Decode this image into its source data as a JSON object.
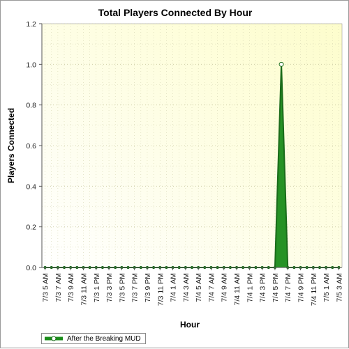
{
  "chart_data": {
    "type": "area",
    "title": "Total Players Connected By Hour",
    "xlabel": "Hour",
    "ylabel": "Players Connected",
    "ylim": [
      0,
      1.2
    ],
    "yticks": [
      "0.0",
      "0.2",
      "0.4",
      "0.6",
      "0.8",
      "1.0",
      "1.2"
    ],
    "categories": [
      "7/3 5 AM",
      "7/3 7 AM",
      "7/3 9 AM",
      "7/3 11 AM",
      "7/3 1 PM",
      "7/3 3 PM",
      "7/3 5 PM",
      "7/3 7 PM",
      "7/3 9 PM",
      "7/3 11 PM",
      "7/4 1 AM",
      "7/4 3 AM",
      "7/4 5 AM",
      "7/4 7 AM",
      "7/4 9 AM",
      "7/4 11 AM",
      "7/4 1 PM",
      "7/4 3 PM",
      "7/4 5 PM",
      "7/4 7 PM",
      "7/4 9 PM",
      "7/4 11 PM",
      "7/5 1 AM",
      "7/5 3 AM"
    ],
    "grid": true,
    "legend_position": "bottom-left",
    "series": [
      {
        "name": "After the Breaking MUD",
        "color": "#1a8c1a",
        "x": [
          "7/3 5 AM",
          "7/3 6 AM",
          "7/3 7 AM",
          "7/3 8 AM",
          "7/3 9 AM",
          "7/3 10 AM",
          "7/3 11 AM",
          "7/3 12 PM",
          "7/3 1 PM",
          "7/3 2 PM",
          "7/3 3 PM",
          "7/3 4 PM",
          "7/3 5 PM",
          "7/3 6 PM",
          "7/3 7 PM",
          "7/3 8 PM",
          "7/3 9 PM",
          "7/3 10 PM",
          "7/3 11 PM",
          "7/4 12 AM",
          "7/4 1 AM",
          "7/4 2 AM",
          "7/4 3 AM",
          "7/4 4 AM",
          "7/4 5 AM",
          "7/4 6 AM",
          "7/4 7 AM",
          "7/4 8 AM",
          "7/4 9 AM",
          "7/4 10 AM",
          "7/4 11 AM",
          "7/4 12 PM",
          "7/4 1 PM",
          "7/4 2 PM",
          "7/4 3 PM",
          "7/4 4 PM",
          "7/4 5 PM",
          "7/4 6 PM",
          "7/4 7 PM",
          "7/4 8 PM",
          "7/4 9 PM",
          "7/4 10 PM",
          "7/4 11 PM",
          "7/5 12 AM",
          "7/5 1 AM",
          "7/5 2 AM",
          "7/5 3 AM"
        ],
        "values": [
          0,
          0,
          0,
          0,
          0,
          0,
          0,
          0,
          0,
          0,
          0,
          0,
          0,
          0,
          0,
          0,
          0,
          0,
          0,
          0,
          0,
          0,
          0,
          0,
          0,
          0,
          0,
          0,
          0,
          0,
          0,
          0,
          0,
          0,
          0,
          0,
          0,
          1.0,
          0,
          0,
          0,
          0,
          0,
          0,
          0,
          0,
          0
        ]
      }
    ]
  },
  "legend": {
    "label": "After the Breaking MUD"
  }
}
